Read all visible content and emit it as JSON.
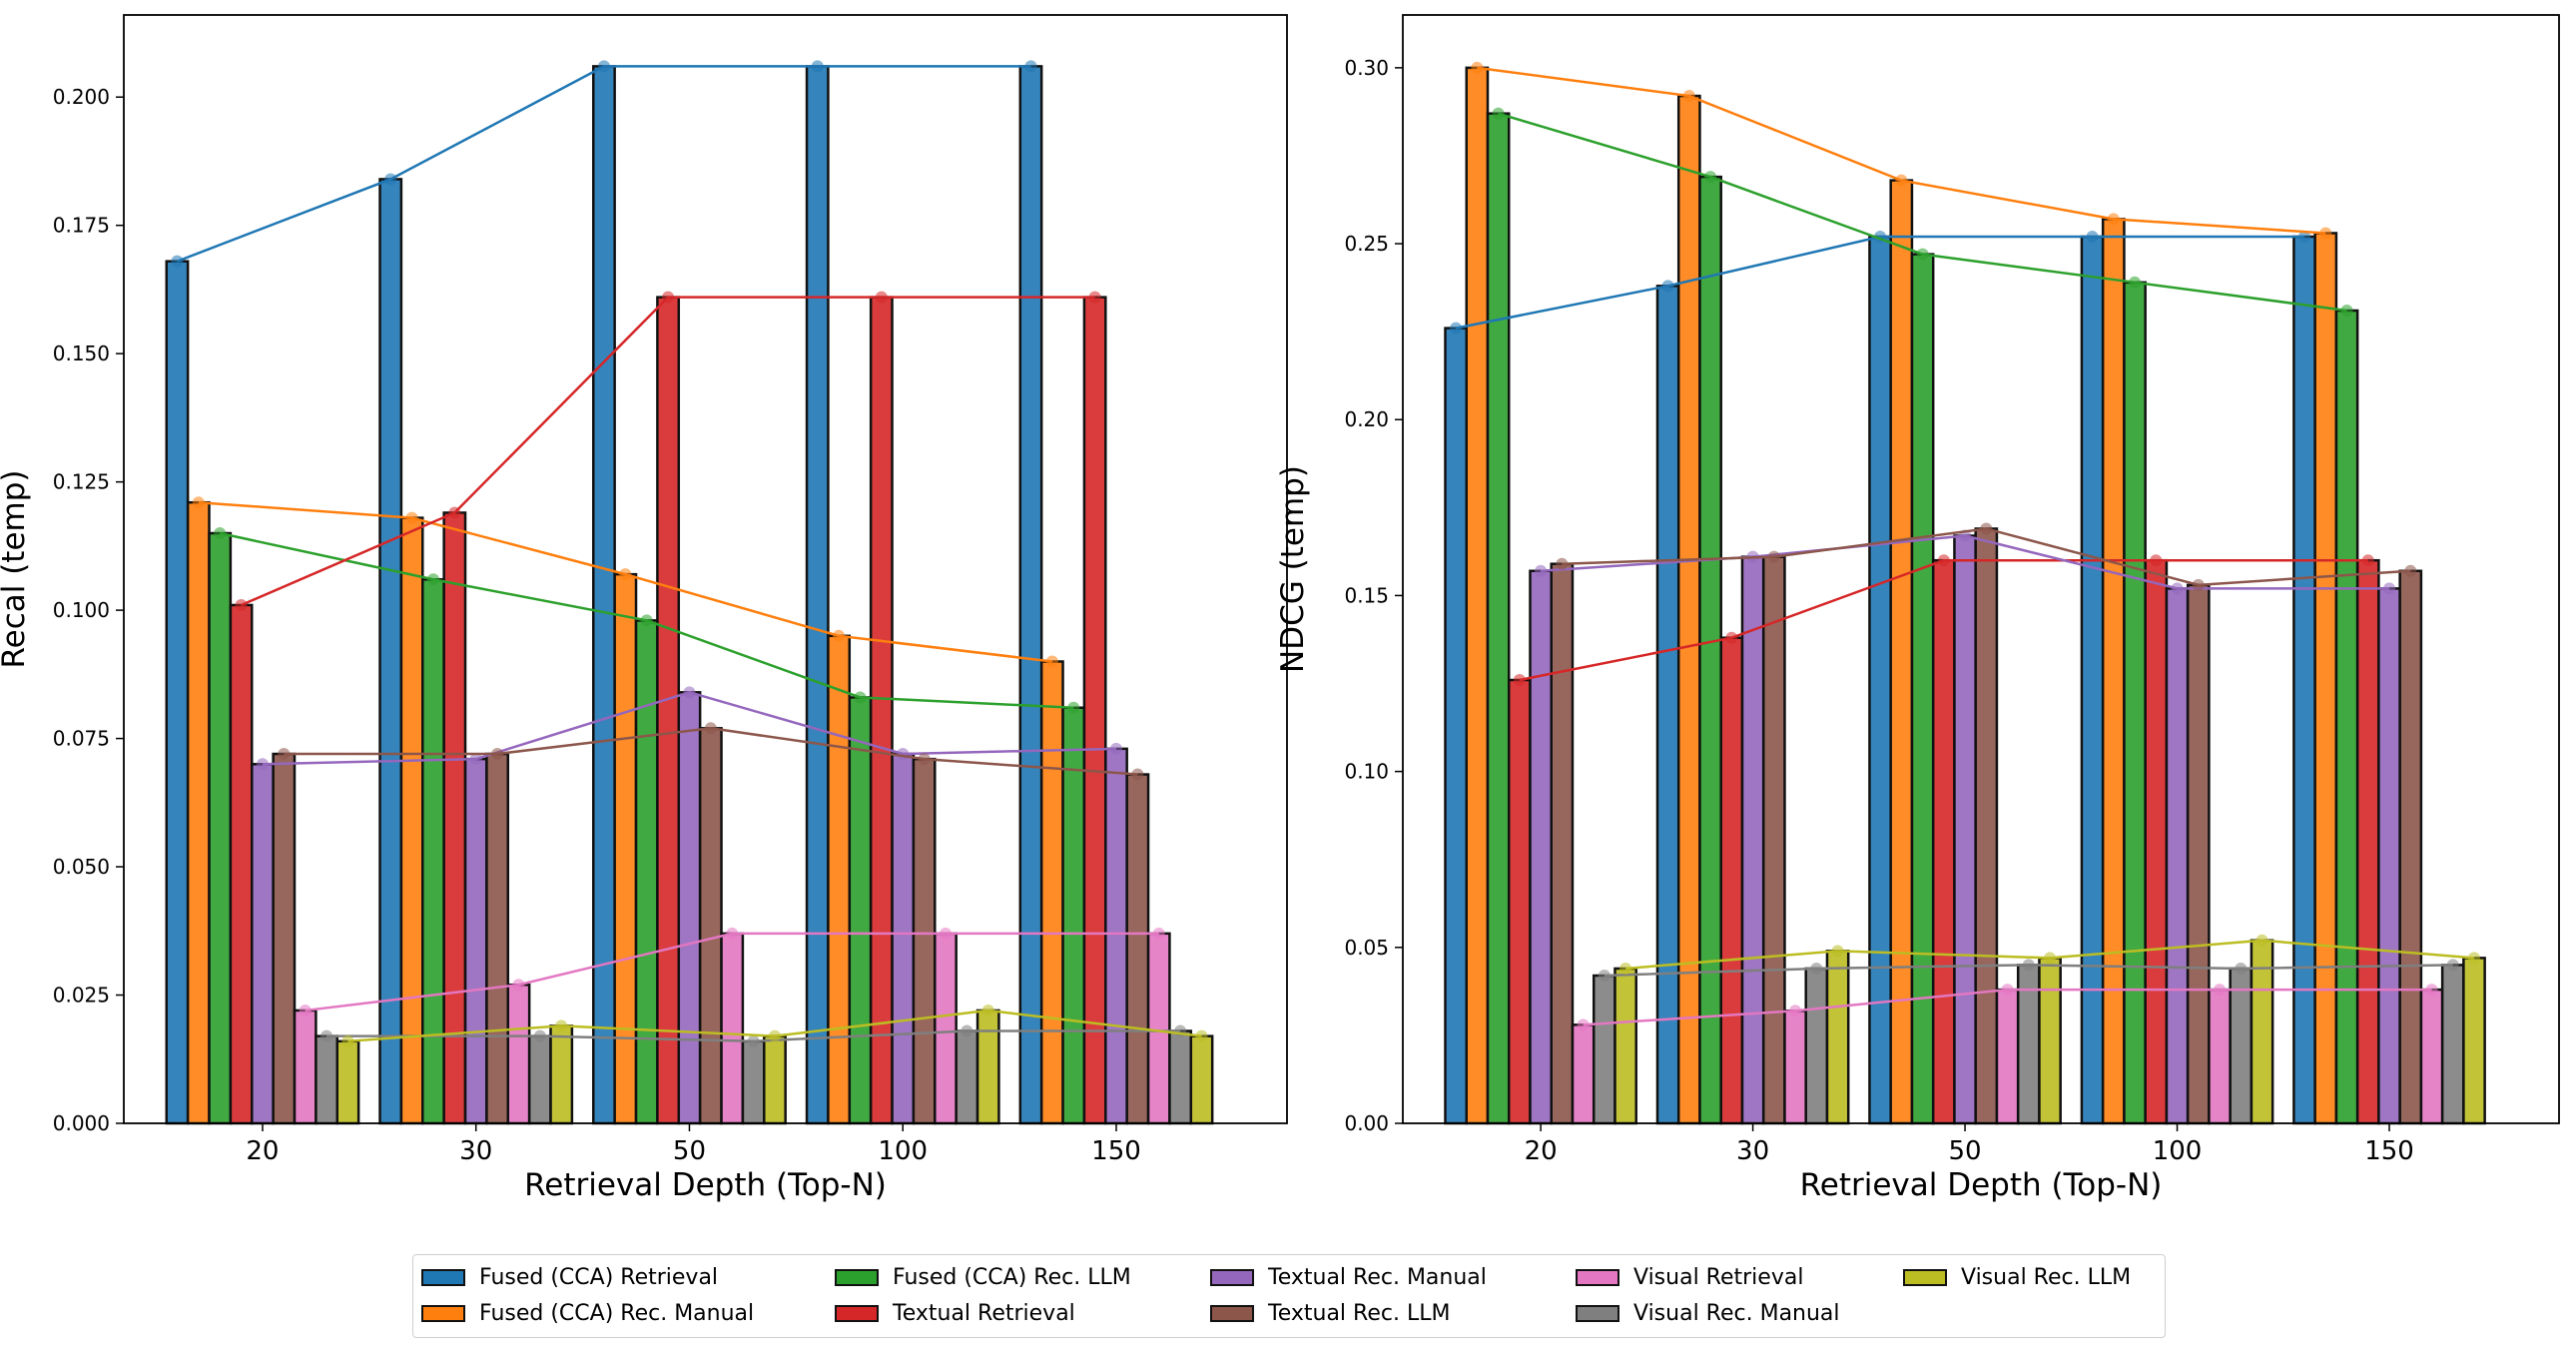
{
  "chart_data": [
    {
      "type": "bar",
      "title": "",
      "xlabel": "Retrieval Depth (Top-N)",
      "ylabel": "Recal (temp)",
      "categories": [
        "20",
        "30",
        "50",
        "100",
        "150"
      ],
      "ylim": [
        0,
        0.216
      ],
      "yticks": [
        "0.000",
        "0.025",
        "0.050",
        "0.075",
        "0.100",
        "0.125",
        "0.150",
        "0.175",
        "0.200"
      ],
      "series": [
        {
          "name": "Fused (CCA) Retrieval",
          "values": [
            0.168,
            0.184,
            0.206,
            0.206,
            0.206
          ]
        },
        {
          "name": "Fused (CCA) Rec. Manual",
          "values": [
            0.121,
            0.118,
            0.107,
            0.095,
            0.09
          ]
        },
        {
          "name": "Fused (CCA) Rec. LLM",
          "values": [
            0.115,
            0.106,
            0.098,
            0.083,
            0.081
          ]
        },
        {
          "name": "Textual Retrieval",
          "values": [
            0.101,
            0.119,
            0.161,
            0.161,
            0.161
          ]
        },
        {
          "name": "Textual Rec. Manual",
          "values": [
            0.07,
            0.071,
            0.084,
            0.072,
            0.073
          ]
        },
        {
          "name": "Textual Rec. LLM",
          "values": [
            0.072,
            0.072,
            0.077,
            0.071,
            0.068
          ]
        },
        {
          "name": "Visual Retrieval",
          "values": [
            0.022,
            0.027,
            0.037,
            0.037,
            0.037
          ]
        },
        {
          "name": "Visual Rec. Manual",
          "values": [
            0.017,
            0.017,
            0.016,
            0.018,
            0.018
          ]
        },
        {
          "name": "Visual Rec. LLM",
          "values": [
            0.016,
            0.019,
            0.017,
            0.022,
            0.017
          ]
        }
      ]
    },
    {
      "type": "bar",
      "title": "",
      "xlabel": "Retrieval Depth (Top-N)",
      "ylabel": "NDCG (temp)",
      "categories": [
        "20",
        "30",
        "50",
        "100",
        "150"
      ],
      "ylim": [
        0,
        0.315
      ],
      "yticks": [
        "0.00",
        "0.05",
        "0.10",
        "0.15",
        "0.20",
        "0.25",
        "0.30"
      ],
      "series": [
        {
          "name": "Fused (CCA) Retrieval",
          "values": [
            0.226,
            0.238,
            0.252,
            0.252,
            0.252
          ]
        },
        {
          "name": "Fused (CCA) Rec. Manual",
          "values": [
            0.3,
            0.292,
            0.268,
            0.257,
            0.253
          ]
        },
        {
          "name": "Fused (CCA) Rec. LLM",
          "values": [
            0.287,
            0.269,
            0.247,
            0.239,
            0.231
          ]
        },
        {
          "name": "Textual Retrieval",
          "values": [
            0.126,
            0.138,
            0.16,
            0.16,
            0.16
          ]
        },
        {
          "name": "Textual Rec. Manual",
          "values": [
            0.157,
            0.161,
            0.167,
            0.152,
            0.152
          ]
        },
        {
          "name": "Textual Rec. LLM",
          "values": [
            0.159,
            0.161,
            0.169,
            0.153,
            0.157
          ]
        },
        {
          "name": "Visual Retrieval",
          "values": [
            0.028,
            0.032,
            0.038,
            0.038,
            0.038
          ]
        },
        {
          "name": "Visual Rec. Manual",
          "values": [
            0.042,
            0.044,
            0.045,
            0.044,
            0.045
          ]
        },
        {
          "name": "Visual Rec. LLM",
          "values": [
            0.044,
            0.049,
            0.047,
            0.052,
            0.047
          ]
        }
      ]
    }
  ],
  "colors": [
    "#1f77b4",
    "#ff7f0e",
    "#2ca02c",
    "#d62728",
    "#9467bd",
    "#8c564b",
    "#e377c2",
    "#7f7f7f",
    "#bcbd22"
  ],
  "legend": {
    "items": [
      {
        "label": "Fused (CCA) Retrieval"
      },
      {
        "label": "Fused (CCA) Rec. Manual"
      },
      {
        "label": "Fused (CCA) Rec. LLM"
      },
      {
        "label": "Textual Retrieval"
      },
      {
        "label": "Textual Rec. Manual"
      },
      {
        "label": "Textual Rec. LLM"
      },
      {
        "label": "Visual Retrieval"
      },
      {
        "label": "Visual Rec. Manual"
      },
      {
        "label": "Visual Rec. LLM"
      }
    ]
  }
}
